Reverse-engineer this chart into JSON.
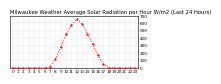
{
  "title": "Milwaukee Weather Average Solar Radiation per Hour W/m2 (Last 24 Hours)",
  "hours": [
    0,
    1,
    2,
    3,
    4,
    5,
    6,
    7,
    8,
    9,
    10,
    11,
    12,
    13,
    14,
    15,
    16,
    17,
    18,
    19,
    20,
    21,
    22,
    23
  ],
  "values": [
    0,
    0,
    0,
    0,
    0,
    0,
    0,
    15,
    120,
    280,
    450,
    580,
    650,
    590,
    460,
    320,
    170,
    50,
    5,
    0,
    0,
    0,
    0,
    0
  ],
  "line_color": "#ff0000",
  "bg_color": "#ffffff",
  "grid_color": "#b0b0b0",
  "ylim": [
    0,
    700
  ],
  "yticks": [
    0,
    100,
    200,
    300,
    400,
    500,
    600,
    700
  ],
  "xlim": [
    -0.5,
    23.5
  ],
  "xticks": [
    0,
    1,
    2,
    3,
    4,
    5,
    6,
    7,
    8,
    9,
    10,
    11,
    12,
    13,
    14,
    15,
    16,
    17,
    18,
    19,
    20,
    21,
    22,
    23
  ],
  "title_fontsize": 3.8,
  "tick_fontsize": 3.0,
  "line_width": 0.7,
  "marker_size": 1.2
}
